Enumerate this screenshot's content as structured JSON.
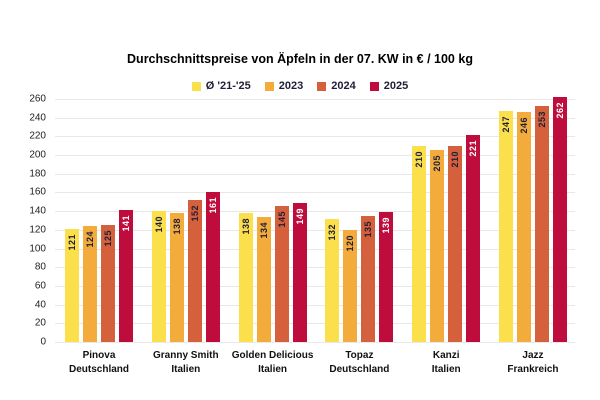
{
  "chart_data": {
    "type": "bar",
    "title": "Durchschnittspreise von Äpfeln in der 07. KW in € / 100 kg",
    "xlabel": "",
    "ylabel": "",
    "ylim": [
      0,
      260
    ],
    "ytick_step": 20,
    "grid": true,
    "legend_position": "top",
    "value_label_rotation": "vertical",
    "categories": [
      {
        "variety": "Pinova",
        "origin": "Deutschland"
      },
      {
        "variety": "Granny Smith",
        "origin": "Italien"
      },
      {
        "variety": "Golden Delicious",
        "origin": "Italien"
      },
      {
        "variety": "Topaz",
        "origin": "Deutschland"
      },
      {
        "variety": "Kanzi",
        "origin": "Italien"
      },
      {
        "variety": "Jazz",
        "origin": "Frankreich"
      }
    ],
    "series": [
      {
        "name": "Ø '21-'25",
        "color": "#FBDF4B",
        "label_color": "#1e1e38",
        "values": [
          121,
          140,
          138,
          132,
          210,
          247
        ]
      },
      {
        "name": "2023",
        "color": "#F3AC3C",
        "label_color": "#1e1e38",
        "values": [
          124,
          138,
          134,
          120,
          205,
          246
        ]
      },
      {
        "name": "2024",
        "color": "#D4613B",
        "label_color": "#1e1e38",
        "values": [
          125,
          152,
          145,
          135,
          210,
          253
        ]
      },
      {
        "name": "2025",
        "color": "#BE0C3C",
        "label_color": "#ffffff",
        "values": [
          141,
          161,
          149,
          139,
          221,
          262
        ]
      }
    ],
    "colors": {
      "grid": "#e8e8e8",
      "axis_text": "#222222",
      "title_text": "#000000",
      "category_text": "#111111",
      "background": "#ffffff"
    }
  }
}
